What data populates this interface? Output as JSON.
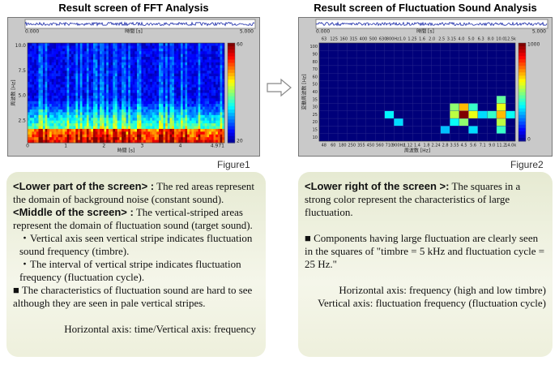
{
  "figures": [
    {
      "title": "Result screen of FFT Analysis",
      "caption": "Figure1",
      "screen": {
        "time_start": "0.000",
        "time_end": "5.000",
        "wave_label": "時間 [s]",
        "y_label": "周波数 [Hz]",
        "x_label": "時間 [s]",
        "yticks": [
          "10.0",
          "7.5",
          "5.0",
          "2.5"
        ],
        "xticks": [
          "0",
          "1",
          "2",
          "3",
          "4",
          "4.971"
        ],
        "colorbar": [
          "60",
          "20"
        ]
      },
      "description": [
        {
          "lead": "<Lower part of the screen> :",
          "text": " The red areas represent the domain of background noise (constant sound)."
        },
        {
          "lead": "<Middle of the screen> :",
          "text": " The vertical-striped areas represent the domain of fluctuation sound (target sound)."
        },
        {
          "text": "・Vertical axis seen vertical stripe indicates fluctuation sound frequency (timbre)."
        },
        {
          "text": "・The interval of vertical stripe indicates fluctuation frequency (fluctuation cycle)."
        },
        {
          "text": "■ The characteristics of fluctuation sound are hard to see although they are seen in pale vertical stripes."
        },
        {
          "text": "Horizontal axis: time/Vertical axis: frequency"
        }
      ]
    },
    {
      "title": "Result screen of Fluctuation Sound Analysis",
      "caption": "Figure2",
      "screen": {
        "time_start": "0.000",
        "time_end": "5.000",
        "wave_label": "時間 [s]",
        "y_label": "変動周波数 [Hz]",
        "x_label": "周波数 [Hz]",
        "top_ticks": [
          "63",
          "125",
          "160",
          "315",
          "400",
          "500",
          "630",
          "800Hz",
          "1.0",
          "1.25",
          "1.6",
          "2.0",
          "2.5",
          "3.15",
          "4.0",
          "5.0",
          "6.3",
          "8.0",
          "10.0",
          "12.5k"
        ],
        "bottom_ticks": [
          "48",
          "60",
          "180",
          "250",
          "355",
          "450",
          "560",
          "710",
          "900Hz",
          "1.12",
          "1.4",
          "1.8",
          "2.24",
          "2.8",
          "3.55",
          "4.5",
          "5.6",
          "7.1",
          "9.0",
          "11.2",
          "14.0k"
        ],
        "yticks": [
          "100",
          "90",
          "80",
          "70",
          "60",
          "50",
          "40",
          "35",
          "30",
          "25",
          "20",
          "15",
          "10"
        ],
        "colorbar": [
          "1000",
          "0"
        ]
      },
      "description": [
        {
          "lead": "<Lower right of the screen >:",
          "text": " The squares in a strong color represent the characteristics of large fluctuation."
        },
        {
          "text": "■ Components having large fluctuation are clearly seen in the squares of  \"timbre = 5 kHz and fluctuation cycle = 25 Hz.\""
        },
        {
          "text": "Horizontal axis: frequency (high and low timbre)"
        },
        {
          "text": "Vertical axis: fluctuation frequency (fluctuation cycle)"
        }
      ]
    }
  ]
}
